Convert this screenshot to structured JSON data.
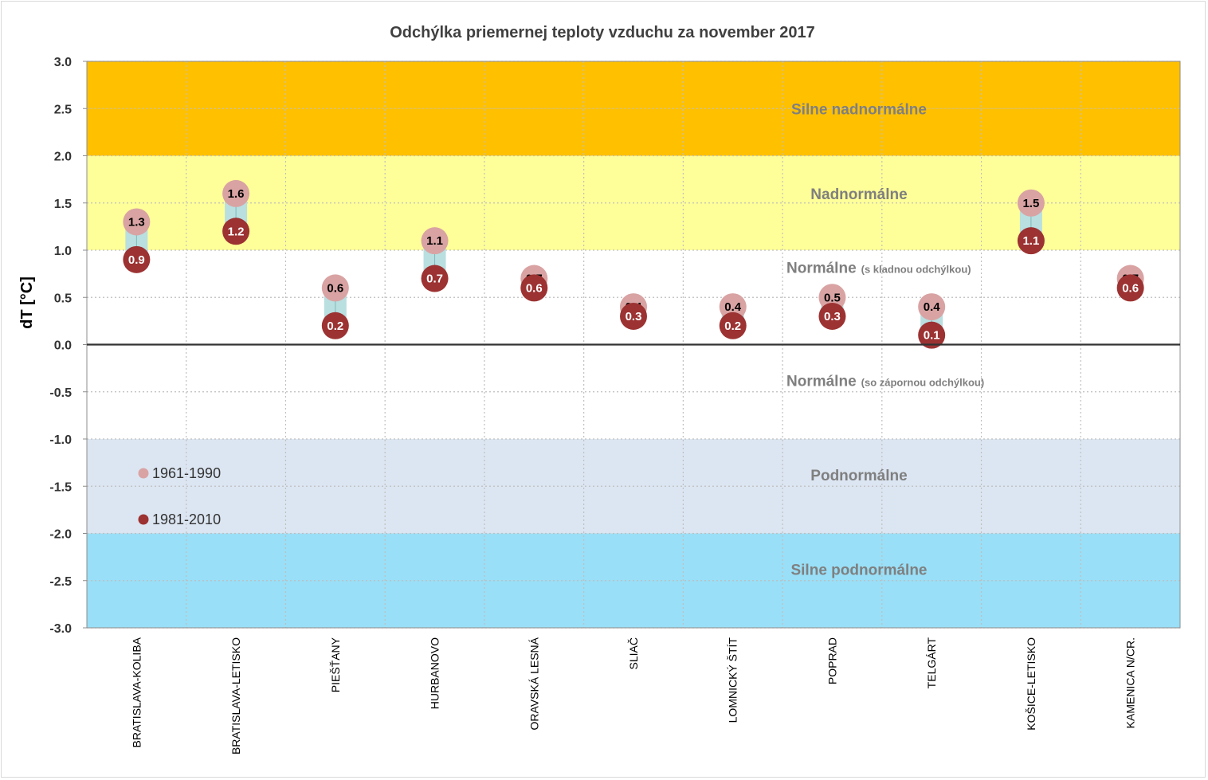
{
  "colors": {
    "silne_nad": "#ffc000",
    "nad": "#ffff99",
    "norm": "#ffffff",
    "pod": "#dce6f2",
    "silne_pod": "#99dff7",
    "c1961": "#d9a3a3",
    "c1981": "#9c3232",
    "connector": "#b9dfe0",
    "grid": "#bfbfbf",
    "zero": "#333333"
  },
  "chart_data": {
    "type": "scatter",
    "title": "Odchýlka priemernej teploty vzduchu za november 2017",
    "ylabel": "dT [°C]",
    "xlabel": "",
    "ylim": [
      -3.0,
      3.0
    ],
    "yticks": [
      "3.0",
      "2.5",
      "2.0",
      "1.5",
      "1.0",
      "0.5",
      "0.0",
      "-0.5",
      "-1.0",
      "-1.5",
      "-2.0",
      "-2.5",
      "-3.0"
    ],
    "ytick_values": [
      3.0,
      2.5,
      2.0,
      1.5,
      1.0,
      0.5,
      0.0,
      -0.5,
      -1.0,
      -1.5,
      -2.0,
      -2.5,
      -3.0
    ],
    "grid": true,
    "categories": [
      "BRATISLAVA-KOLIBA",
      "BRATISLAVA-LETISKO",
      "PIEŠŤANY",
      "HURBANOVO",
      "ORAVSKÁ LESNÁ",
      "SLIAČ",
      "LOMNICKÝ ŠTÍT",
      "POPRAD",
      "TELGÁRT",
      "KOŠICE-LETISKO",
      "KAMENICA N/CR."
    ],
    "series": [
      {
        "name": "1961-1990",
        "values": [
          1.3,
          1.6,
          0.6,
          1.1,
          0.7,
          0.4,
          0.4,
          0.5,
          0.4,
          1.5,
          0.7
        ]
      },
      {
        "name": "1981-2010",
        "values": [
          0.9,
          1.2,
          0.2,
          0.7,
          0.6,
          0.3,
          0.2,
          0.3,
          0.1,
          1.1,
          0.6
        ]
      }
    ],
    "bands": [
      {
        "from": 2.0,
        "to": 3.0,
        "label": "Silne nadnormálne",
        "note": ""
      },
      {
        "from": 1.0,
        "to": 2.0,
        "label": "Nadnormálne",
        "note": ""
      },
      {
        "from": 0.0,
        "to": 1.0,
        "label": "Normálne",
        "note": "(s kladnou odchýlkou)"
      },
      {
        "from": -1.0,
        "to": 0.0,
        "label": "Normálne",
        "note": "(so zápornou odchýlkou)"
      },
      {
        "from": -2.0,
        "to": -1.0,
        "label": "Podnormálne",
        "note": ""
      },
      {
        "from": -3.0,
        "to": -2.0,
        "label": "Silne podnormálne",
        "note": ""
      }
    ],
    "legend": {
      "position": "bottom-left",
      "entries": [
        "1961-1990",
        "1981-2010"
      ]
    }
  }
}
